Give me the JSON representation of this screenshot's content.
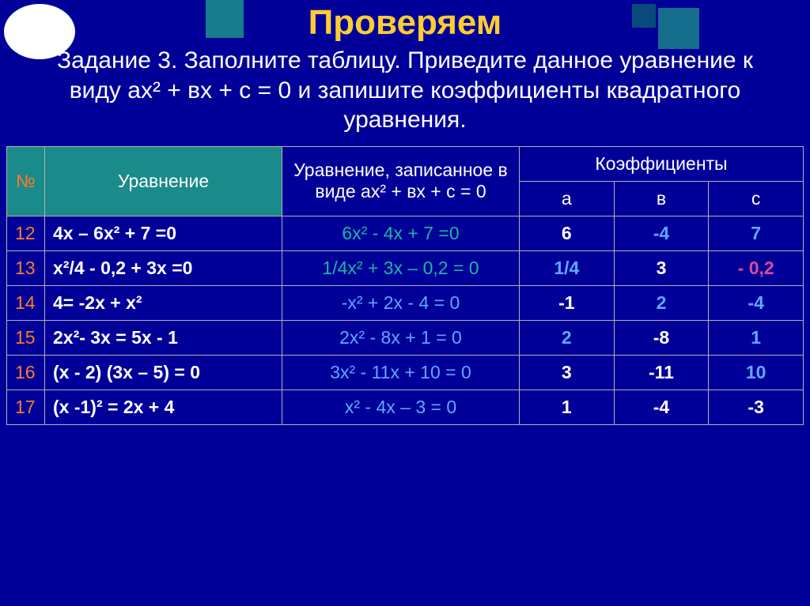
{
  "title": {
    "text": "Проверяем",
    "color": "#ffcc33"
  },
  "subtitle": "Задание 3. Заполните таблицу. Приведите данное уравнение к виду ах² + вх + с = 0 и запишите коэффициенты квадратного уравнения.",
  "headers": {
    "num": "№",
    "equation": "Уравнение",
    "standard": "Уравнение, записанное в виде ах² + вх + с = 0",
    "coeffs_group": "Коэффициенты",
    "a": "а",
    "b": "в",
    "c": "с"
  },
  "rows": [
    {
      "n": "12",
      "raw": "4х – 6х² + 7 =0",
      "std": "6х² - 4х + 7 =0",
      "std_color": "#1ab7a0",
      "a": "6",
      "a_color": "#ffffff",
      "b": "-4",
      "b_color": "#5fa8ff",
      "c": "7",
      "c_color": "#5fa8ff"
    },
    {
      "n": "13",
      "raw": "х²/4  - 0,2 + 3х =0",
      "std": "1/4х² + 3х – 0,2 = 0",
      "std_color": "#1ab7a0",
      "a": "1/4",
      "a_color": "#5fa8ff",
      "b": "3",
      "b_color": "#ffffff",
      "c": "- 0,2",
      "c_color": "#d94a9a"
    },
    {
      "n": "14",
      "raw": "4= -2х + х²",
      "std": "-х² + 2х - 4 = 0",
      "std_color": "#5fa8ff",
      "a": "-1",
      "a_color": "#ffffff",
      "b": "2",
      "b_color": "#5fa8ff",
      "c": "-4",
      "c_color": "#5fa8ff"
    },
    {
      "n": "15",
      "raw": "2х²- 3х = 5х - 1",
      "std": "2х² - 8х + 1 = 0",
      "std_color": "#5fa8ff",
      "a": "2",
      "a_color": "#5fa8ff",
      "b": "-8",
      "b_color": "#ffffff",
      "c": "1",
      "c_color": "#5fa8ff"
    },
    {
      "n": "16",
      "raw": "(х - 2) (3х – 5) = 0",
      "std": "3х² - 11х + 10 = 0",
      "std_color": "#5fa8ff",
      "a": "3",
      "a_color": "#ffffff",
      "b": "-11",
      "b_color": "#ffffff",
      "c": "10",
      "c_color": "#5fa8ff"
    },
    {
      "n": "17",
      "raw": "(х -1)² = 2х + 4",
      "std": "х² - 4х – 3 = 0",
      "std_color": "#5fa8ff",
      "a": "1",
      "a_color": "#ffffff",
      "b": "-4",
      "b_color": "#ffffff",
      "c": "-3",
      "c_color": "#ffffff"
    }
  ],
  "colors": {
    "background": "#000099",
    "title": "#ffcc33",
    "text": "#ffffff",
    "row_number": "#ff7a2a",
    "header_bg": "#1a8a8a",
    "border": "#b0b0b0"
  }
}
